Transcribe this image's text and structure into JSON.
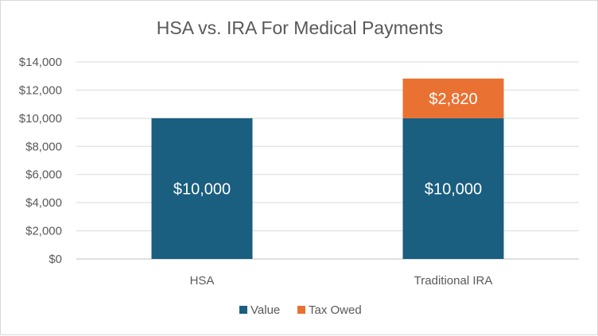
{
  "chart_data": {
    "type": "bar",
    "stacked": true,
    "title": "HSA vs. IRA For Medical Payments",
    "categories": [
      "HSA",
      "Traditional IRA"
    ],
    "series": [
      {
        "name": "Value",
        "values": [
          10000,
          10000
        ],
        "labels": [
          "$10,000",
          "$10,000"
        ],
        "color": "#1a5e80"
      },
      {
        "name": "Tax Owed",
        "values": [
          0,
          2820
        ],
        "labels": [
          "",
          "$2,820"
        ],
        "color": "#e97132"
      }
    ],
    "ylim": [
      0,
      14000
    ],
    "yticks": [
      0,
      2000,
      4000,
      6000,
      8000,
      10000,
      12000,
      14000
    ],
    "ytick_labels": [
      "$0",
      "$2,000",
      "$4,000",
      "$6,000",
      "$8,000",
      "$10,000",
      "$12,000",
      "$14,000"
    ],
    "xlabel": "",
    "ylabel": "",
    "grid": true,
    "legend_position": "bottom"
  }
}
